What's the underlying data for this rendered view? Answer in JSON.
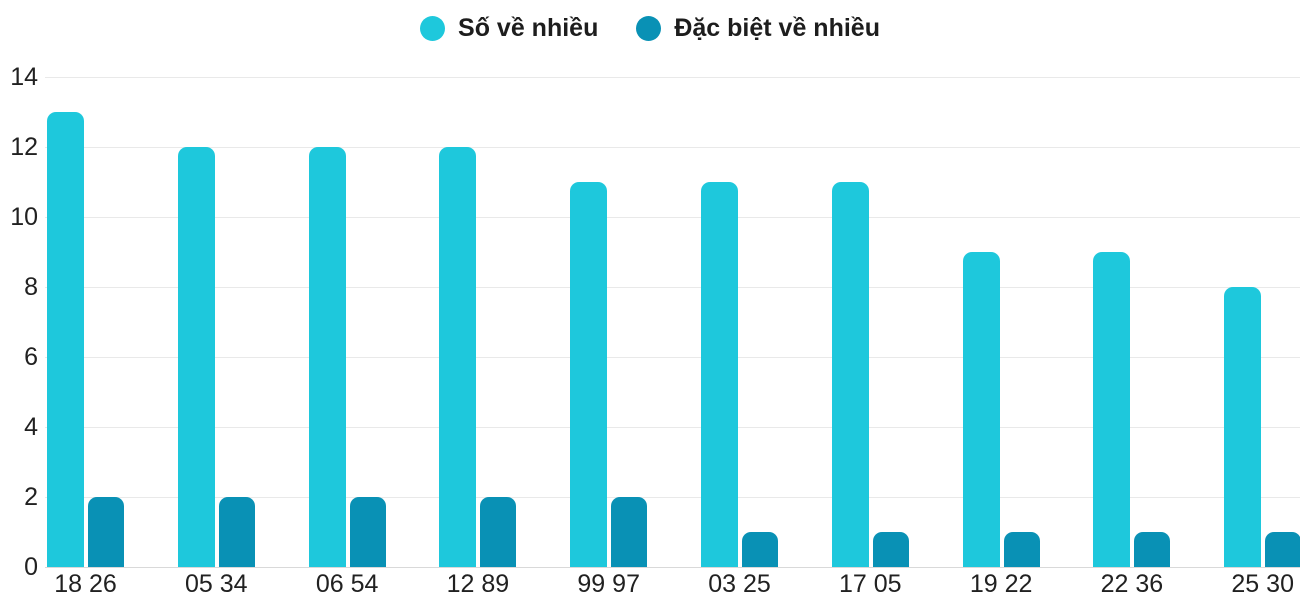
{
  "chart_data": {
    "type": "bar",
    "title": "",
    "xlabel": "",
    "ylabel": "",
    "categories": [
      "18 26",
      "05 34",
      "06 54",
      "12 89",
      "99 97",
      "03 25",
      "17 05",
      "19 22",
      "22 36",
      "25 30"
    ],
    "series": [
      {
        "name": "Số về nhiều",
        "color": "#1EC8DC",
        "values": [
          13,
          12,
          12,
          12,
          11,
          11,
          11,
          9,
          9,
          8
        ]
      },
      {
        "name": "Đặc biệt về nhiều",
        "color": "#0991B5",
        "values": [
          2,
          2,
          2,
          2,
          2,
          1,
          1,
          1,
          1,
          1
        ]
      }
    ],
    "ylim": [
      0,
      14
    ],
    "yticks": [
      0,
      2,
      4,
      6,
      8,
      10,
      12,
      14
    ],
    "grid": "horizontal",
    "legend_position": "top-center",
    "background": "#ffffff",
    "text_color": "#212121",
    "gridline_color": "#e9e9e9",
    "baseline_color": "#d9d9d9"
  }
}
